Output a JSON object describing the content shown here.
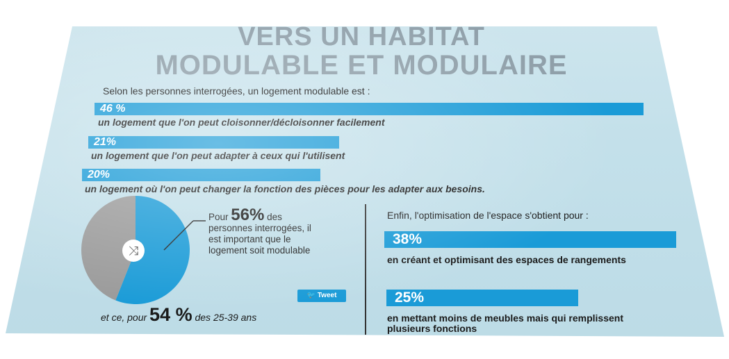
{
  "title_line1": "VERS UN HABITAT",
  "title_line2": "MODULABLE ET MODULAIRE",
  "intro": "Selon les personnes interrogées, un logement modulable est :",
  "chart_data": [
    {
      "type": "bar",
      "title": "",
      "categories": [
        "un logement que l'on peut cloisonner/décloisonner facilement",
        "un logement que l'on peut adapter à ceux qui l'utilisent",
        "un logement où l'on peut changer la fonction des pièces pour les adapter aux besoins."
      ],
      "values": [
        46,
        21,
        20
      ],
      "value_labels": [
        "46 %",
        "21%",
        "20%"
      ],
      "color": "#1a9bd7"
    },
    {
      "type": "pie",
      "slices": [
        {
          "value": 56,
          "color": "#1a9bd7"
        },
        {
          "value": 44,
          "color": "#9a9a9a"
        }
      ]
    },
    {
      "type": "bar",
      "title": "Enfin, l'optimisation de l'espace s'obtient pour :",
      "categories": [
        "en créant et optimisant des espaces de rangements",
        "en mettant moins de meubles mais qui remplissent plusieurs fonctions"
      ],
      "values": [
        38,
        25
      ],
      "value_labels": [
        "38%",
        "25%"
      ],
      "color": "#1a9bd7"
    }
  ],
  "pie_text": {
    "prefix": "Pour",
    "value": "56%",
    "suffix": "des",
    "rest": "personnes interrogées, il est important que le logement soit modulable"
  },
  "tweet_label": "Tweet",
  "bottom": {
    "prefix": "et ce, pour",
    "value": "54 %",
    "suffix": "des 25-39 ans"
  },
  "colors": {
    "accent": "#1a9bd7",
    "background": "#c3e0ea",
    "title": "#8e9ea8",
    "pie_other": "#9a9a9a"
  },
  "icons": {
    "pie_center": "shuffle-icon",
    "tweet": "twitter-bird-icon"
  }
}
